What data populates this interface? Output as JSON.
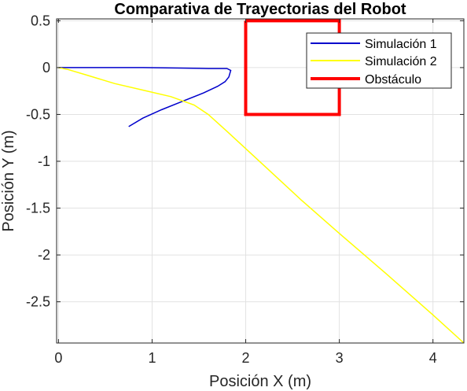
{
  "chart_data": {
    "type": "line",
    "title": "Comparativa de Trayectorias del Robot",
    "xlabel": "Posición X (m)",
    "ylabel": "Posición Y (m)",
    "xlim": [
      -0.02,
      4.33
    ],
    "ylim": [
      -2.94,
      0.52
    ],
    "xticks": [
      0,
      1,
      2,
      3,
      4
    ],
    "yticks": [
      0.5,
      0,
      -0.5,
      -1,
      -1.5,
      -2,
      -2.5
    ],
    "xtick_labels": [
      "0",
      "1",
      "2",
      "3",
      "4"
    ],
    "ytick_labels": [
      "0.5",
      "0",
      "-0.5",
      "-1",
      "-1.5",
      "-2",
      "-2.5"
    ],
    "grid": true,
    "legend_position": "top-right",
    "series": [
      {
        "name": "Simulación 1",
        "color": "#0000cc",
        "style": "line",
        "x": [
          0.0,
          0.2,
          0.5,
          0.9,
          1.3,
          1.6,
          1.8,
          1.84,
          1.82,
          1.78,
          1.7,
          1.55,
          1.35,
          1.1,
          0.9,
          0.75
        ],
        "y": [
          0.0,
          0.0,
          0.0,
          0.0,
          -0.005,
          -0.01,
          -0.01,
          -0.03,
          -0.1,
          -0.15,
          -0.2,
          -0.27,
          -0.35,
          -0.45,
          -0.54,
          -0.63
        ]
      },
      {
        "name": "Simulación 2",
        "color": "#ffff00",
        "style": "line",
        "x": [
          0.0,
          0.1,
          0.3,
          0.6,
          0.9,
          1.2,
          1.45,
          1.6,
          1.8,
          2.2,
          2.6,
          3.0,
          3.5,
          4.0,
          4.33
        ],
        "y": [
          0.0,
          -0.02,
          -0.08,
          -0.17,
          -0.24,
          -0.31,
          -0.4,
          -0.5,
          -0.68,
          -1.05,
          -1.42,
          -1.77,
          -2.2,
          -2.64,
          -2.94
        ]
      },
      {
        "name": "Obstáculo",
        "color": "#ff0000",
        "style": "thick-line",
        "x": [
          2.0,
          3.0,
          3.0,
          2.0,
          2.0
        ],
        "y": [
          0.5,
          0.5,
          -0.5,
          -0.5,
          0.5
        ]
      }
    ]
  }
}
